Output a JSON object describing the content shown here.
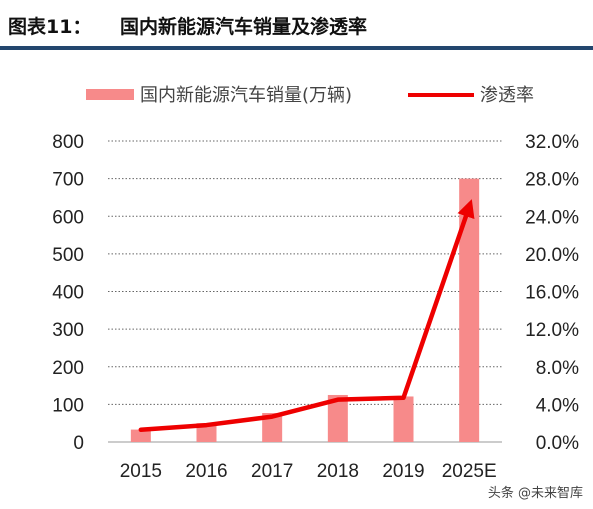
{
  "header": {
    "figure_label": "图表11：",
    "title": "国内新能源汽车销量及渗透率"
  },
  "colors": {
    "bar": "#f78a8a",
    "line": "#ee0000",
    "rule": "#23466e",
    "grid": "#666666"
  },
  "chart_data": {
    "type": "bar",
    "title": "国内新能源汽车销量及渗透率",
    "categories": [
      "2015",
      "2016",
      "2017",
      "2018",
      "2019",
      "2025E"
    ],
    "series": [
      {
        "name": "国内新能源汽车销量(万辆)",
        "type": "bar",
        "axis": "left",
        "values": [
          33,
          50,
          77,
          125,
          121,
          700
        ]
      },
      {
        "name": "渗透率",
        "type": "line",
        "axis": "right",
        "values": [
          1.3,
          1.8,
          2.7,
          4.5,
          4.7,
          25.0
        ]
      }
    ],
    "y_left": {
      "min": 0,
      "max": 800,
      "step": 100,
      "tick_labels": [
        "0",
        "100",
        "200",
        "300",
        "400",
        "500",
        "600",
        "700",
        "800"
      ]
    },
    "y_right": {
      "min": 0,
      "max": 32,
      "step": 4,
      "tick_labels": [
        "0.0%",
        "4.0%",
        "8.0%",
        "12.0%",
        "16.0%",
        "20.0%",
        "24.0%",
        "28.0%",
        "32.0%"
      ]
    },
    "grid": true,
    "legend": "top"
  },
  "watermark": "头条 @未来智库"
}
